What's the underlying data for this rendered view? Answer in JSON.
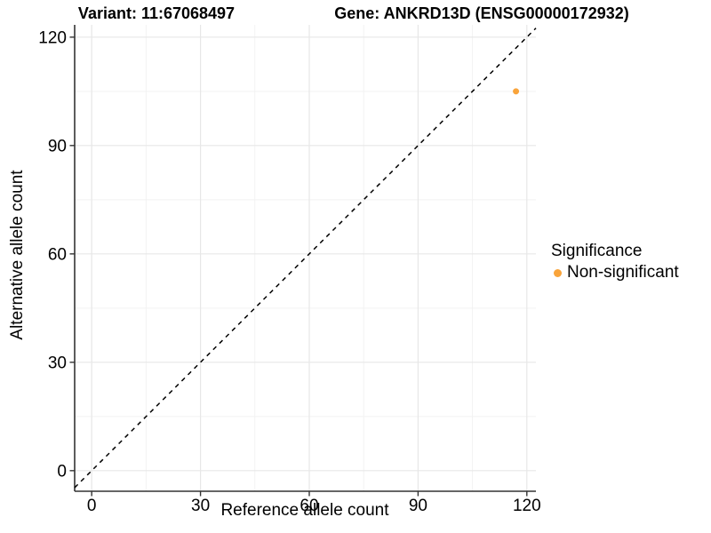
{
  "figure": {
    "title_left": "Variant: 11:67068497",
    "title_right": "Gene: ANKRD13D (ENSG00000172932)"
  },
  "axes": {
    "x_label": "Reference allele count",
    "y_label": "Alternative allele count"
  },
  "legend": {
    "title": "Significance",
    "items": [
      {
        "label": "Non-significant",
        "marker": "circle-icon",
        "color": "#F9A43B"
      }
    ]
  },
  "colors": {
    "background": "#FFFFFF",
    "axis_line": "#333333",
    "grid_major": "#E7E7E7",
    "grid_minor": "#F2F2F2",
    "reference_line": "#000000",
    "point": "#F9A43B",
    "text": "#000000"
  },
  "chart_data": {
    "type": "scatter",
    "title": "Variant: 11:67068497 / Gene: ANKRD13D (ENSG00000172932)",
    "xlabel": "Reference allele count",
    "ylabel": "Alternative allele count",
    "xlim": [
      -4.7,
      122.5
    ],
    "ylim": [
      -5.7,
      123.4
    ],
    "x_ticks": [
      0,
      30,
      60,
      90,
      120
    ],
    "y_ticks": [
      0,
      30,
      60,
      90,
      120
    ],
    "x_minor_ticks": [
      15,
      45,
      75,
      105
    ],
    "y_minor_ticks": [
      15,
      45,
      75,
      105
    ],
    "grid": true,
    "legend_position": "right",
    "series": [
      {
        "name": "Non-significant",
        "color": "#F9A43B",
        "points": [
          {
            "x": 117,
            "y": 105
          }
        ]
      }
    ],
    "reference_line": {
      "type": "identity",
      "slope": 1,
      "intercept": 0,
      "style": "dashed",
      "color": "#000000"
    }
  }
}
